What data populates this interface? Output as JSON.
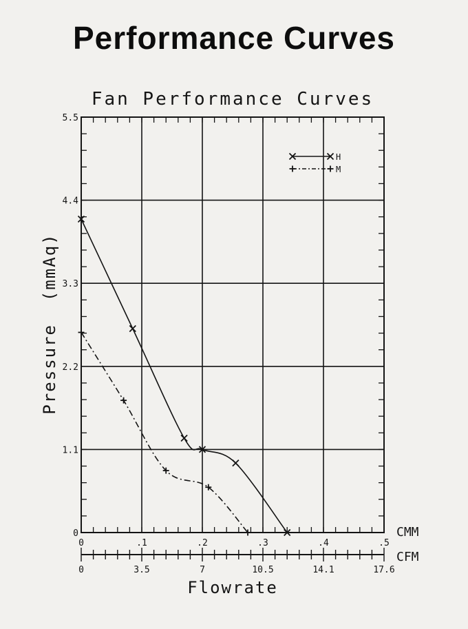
{
  "page": {
    "title": "Performance Curves"
  },
  "chart_data": {
    "type": "line",
    "title": "Fan Performance Curves",
    "xlabel": "Flowrate",
    "ylabel": "Pressure  (mmAq)",
    "x_unit_primary": "CMM",
    "x_unit_secondary": "CFM",
    "xlim": [
      0,
      0.5
    ],
    "ylim": [
      0,
      5.5
    ],
    "x_ticks": [
      "0",
      ".1",
      ".2",
      ".3",
      ".4",
      ".5"
    ],
    "x_ticks_secondary": [
      "0",
      "3.5",
      "7",
      "10.5",
      "14.1",
      "17.6"
    ],
    "y_ticks": [
      "0",
      "1.1",
      "2.2",
      "3.3",
      "4.4",
      "5.5"
    ],
    "y_tick_values": [
      0,
      1.1,
      2.2,
      3.3,
      4.4,
      5.5
    ],
    "grid": true,
    "legend_position": "top-right",
    "series": [
      {
        "name": "H",
        "marker": "x",
        "line_style": "solid",
        "points": [
          [
            0,
            4.15
          ],
          [
            0.085,
            2.7
          ],
          [
            0.17,
            1.25
          ],
          [
            0.2,
            1.1
          ],
          [
            0.255,
            0.92
          ],
          [
            0.34,
            0
          ]
        ]
      },
      {
        "name": "M",
        "marker": "+",
        "line_style": "dash-dot",
        "points": [
          [
            0,
            2.65
          ],
          [
            0.07,
            1.75
          ],
          [
            0.14,
            0.82
          ],
          [
            0.21,
            0.6
          ],
          [
            0.275,
            0
          ]
        ]
      }
    ]
  }
}
